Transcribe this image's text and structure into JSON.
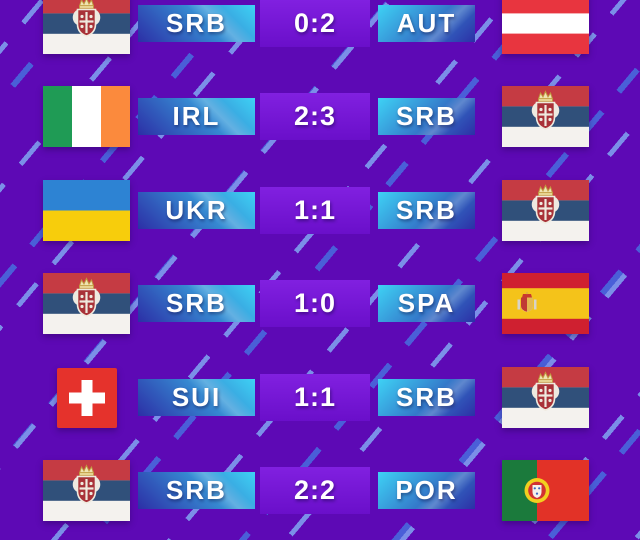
{
  "title": "match-results-scoreboard",
  "colors": {
    "background": "#5d09b5",
    "dash_blue": "#4a5fd8",
    "dash_light": "#7b8fe8",
    "bar_cyan": "#3ed2f5",
    "bar_blue": "#2c2fa6",
    "score_box_top": "#8120e0",
    "score_box_bottom": "#6a0fca",
    "text": "#ffffff"
  },
  "matches": [
    {
      "home": {
        "code": "SRB",
        "flag": "serbia"
      },
      "score": "0:2",
      "away": {
        "code": "AUT",
        "flag": "austria"
      }
    },
    {
      "home": {
        "code": "IRL",
        "flag": "ireland"
      },
      "score": "2:3",
      "away": {
        "code": "SRB",
        "flag": "serbia"
      }
    },
    {
      "home": {
        "code": "UKR",
        "flag": "ukraine"
      },
      "score": "1:1",
      "away": {
        "code": "SRB",
        "flag": "serbia"
      }
    },
    {
      "home": {
        "code": "SRB",
        "flag": "serbia"
      },
      "score": "1:0",
      "away": {
        "code": "SPA",
        "flag": "spain"
      }
    },
    {
      "home": {
        "code": "SUI",
        "flag": "switzerland"
      },
      "score": "1:1",
      "away": {
        "code": "SRB",
        "flag": "serbia"
      }
    },
    {
      "home": {
        "code": "SRB",
        "flag": "serbia"
      },
      "score": "2:2",
      "away": {
        "code": "POR",
        "flag": "portugal"
      }
    }
  ]
}
